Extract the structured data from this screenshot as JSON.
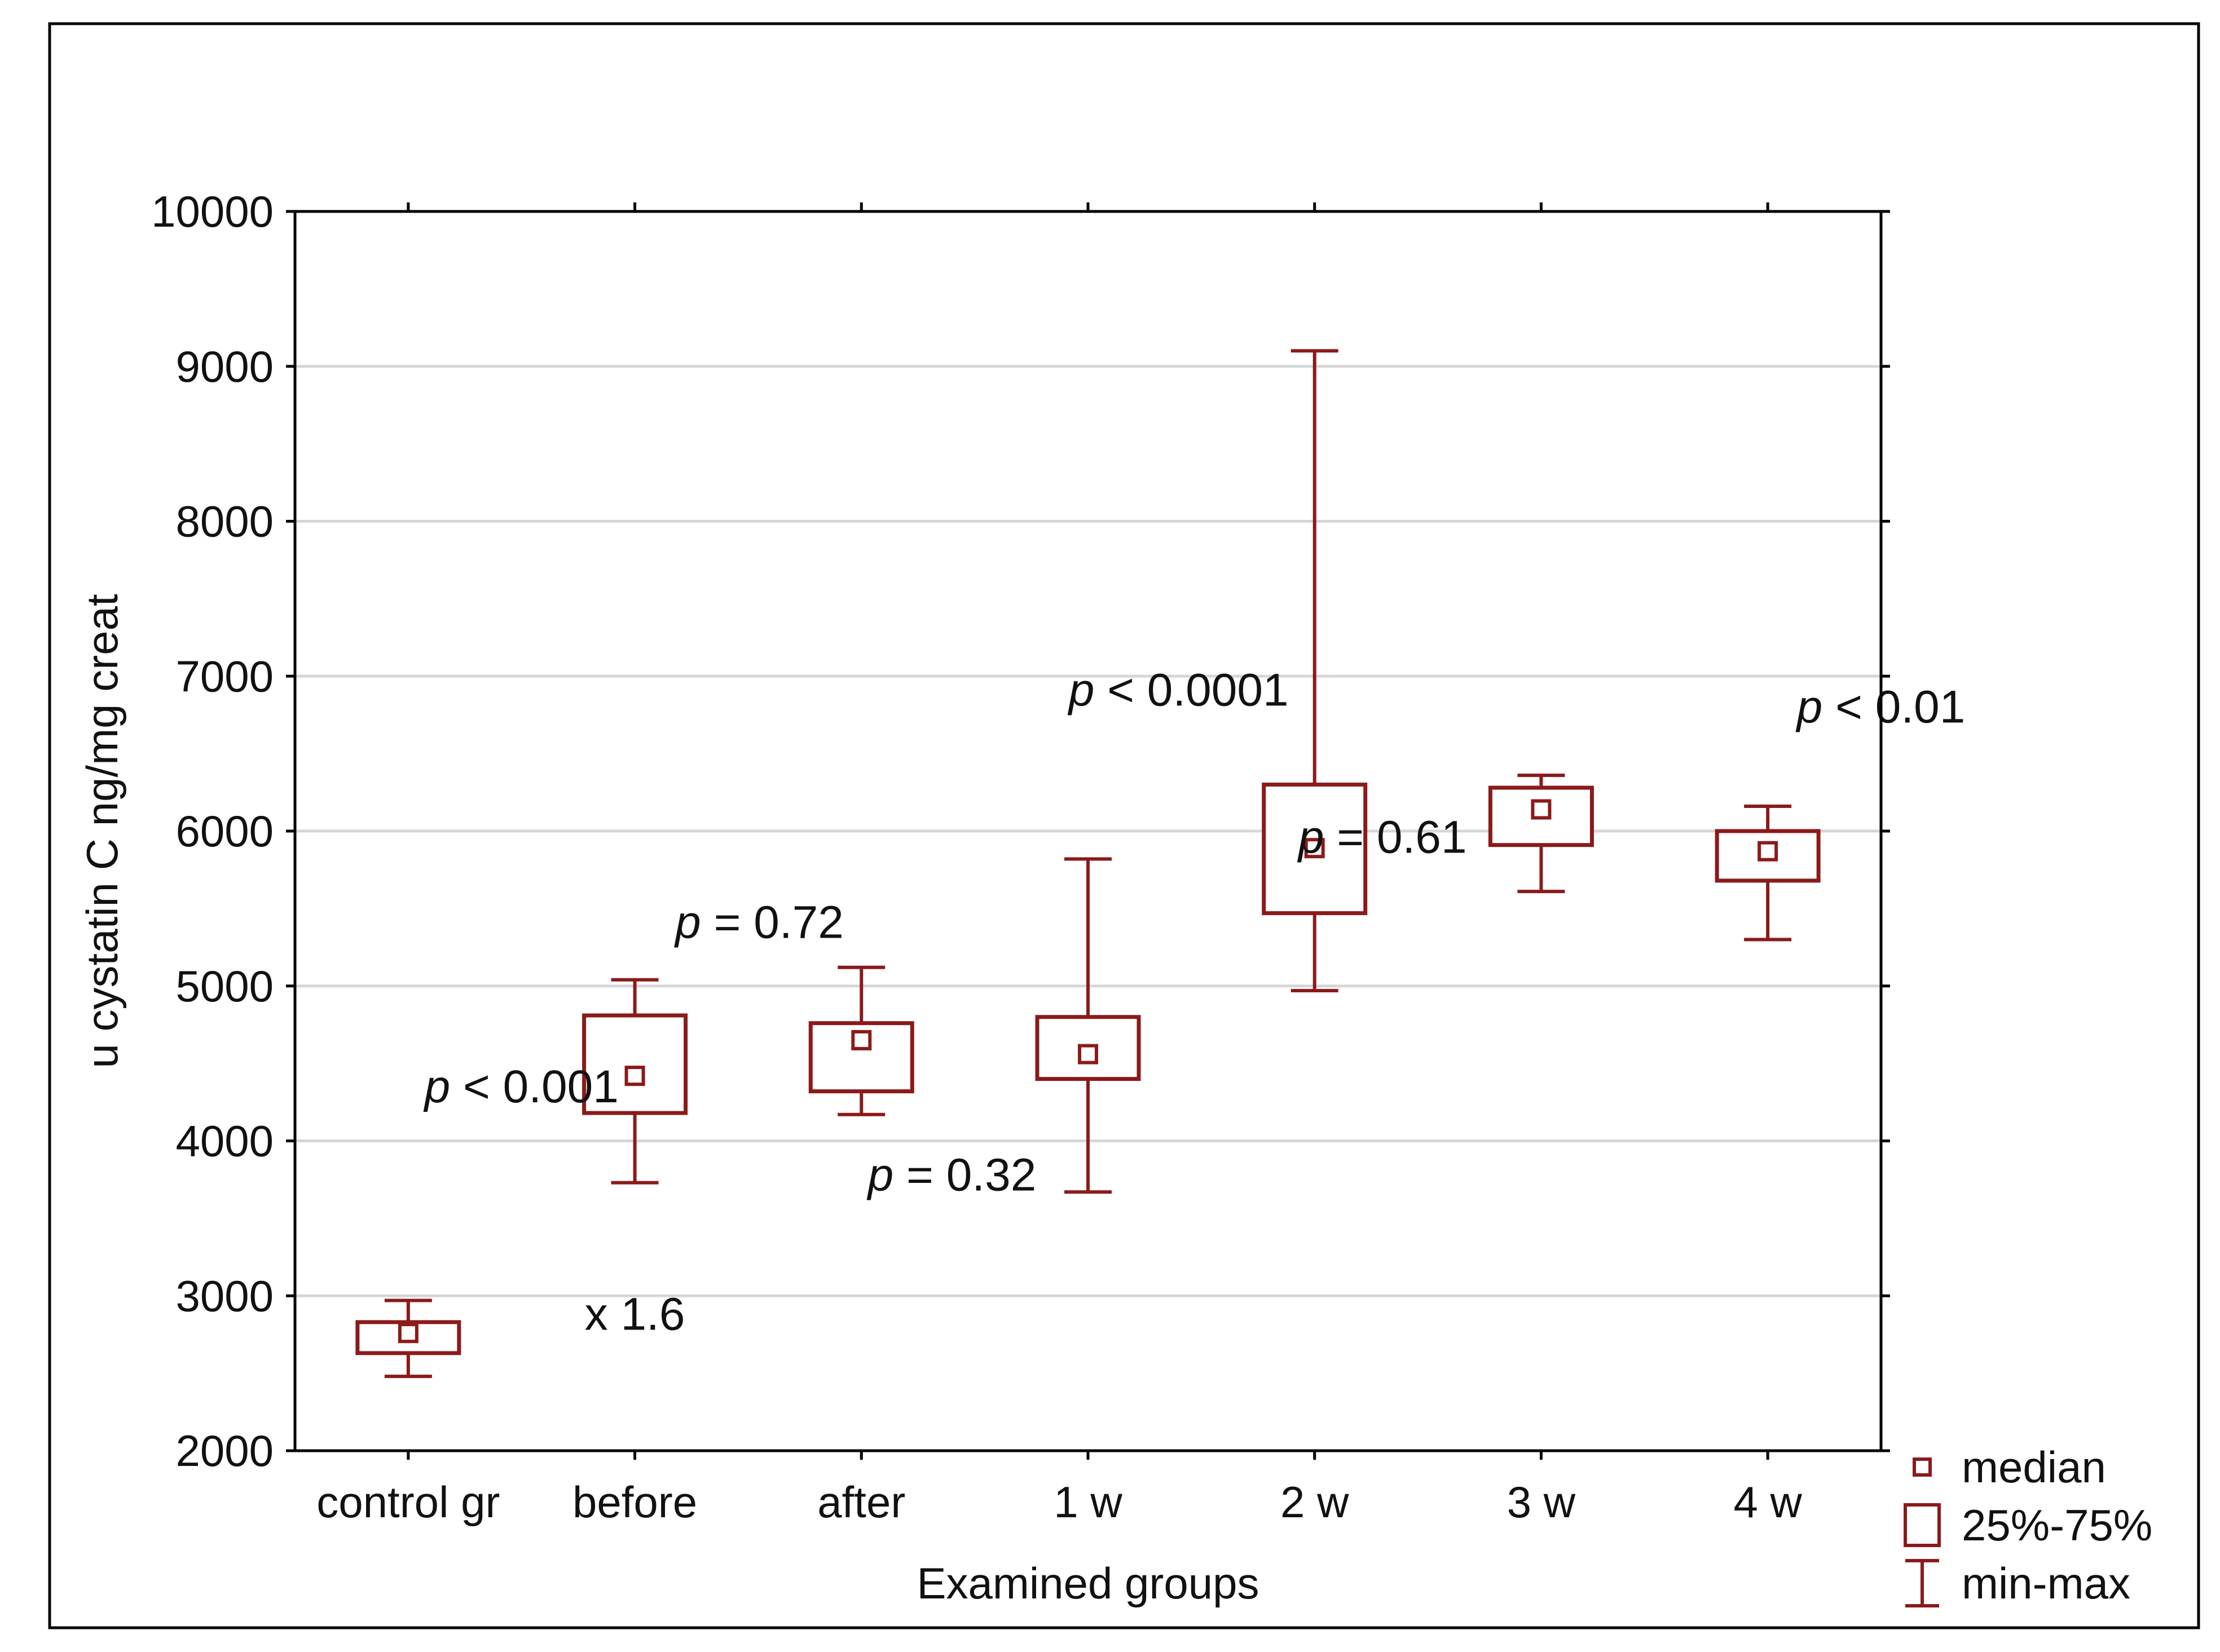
{
  "chart_data": {
    "type": "boxplot",
    "title": "",
    "xlabel": "Examined groups",
    "ylabel": "u cystatin C ng/mg creat",
    "ylim": [
      2000,
      10000
    ],
    "yticks": [
      2000,
      3000,
      4000,
      5000,
      6000,
      7000,
      8000,
      9000,
      10000
    ],
    "grid": true,
    "color": "#8B1A1A",
    "categories": [
      "control gr",
      "before",
      "after",
      "1 w",
      "2 w",
      "3 w",
      "4 w"
    ],
    "series": [
      {
        "name": "min",
        "values": [
          2480,
          3730,
          4170,
          3670,
          4970,
          5610,
          5300
        ]
      },
      {
        "name": "q1",
        "values": [
          2630,
          4180,
          4320,
          4400,
          5470,
          5910,
          5680
        ]
      },
      {
        "name": "median",
        "values": [
          2760,
          4420,
          4650,
          4560,
          5890,
          6140,
          5870
        ]
      },
      {
        "name": "q3",
        "values": [
          2830,
          4810,
          4760,
          4800,
          6300,
          6280,
          6000
        ]
      },
      {
        "name": "max",
        "values": [
          2970,
          5040,
          5120,
          5820,
          9100,
          6360,
          6160
        ]
      }
    ],
    "annotations": [
      {
        "italic": "p",
        "rest": " < 0.001",
        "x": 0.5,
        "y": 4250
      },
      {
        "italic": "",
        "rest": "x 1.6",
        "x": 1.0,
        "y": 2780
      },
      {
        "italic": "p",
        "rest": " = 0.72",
        "x": 1.55,
        "y": 5310
      },
      {
        "italic": "p",
        "rest": " = 0.32",
        "x": 2.4,
        "y": 3680
      },
      {
        "italic": "p",
        "rest": " < 0.0001",
        "x": 3.4,
        "y": 6810
      },
      {
        "italic": "p",
        "rest": " = 0.61",
        "x": 4.3,
        "y": 5860
      },
      {
        "italic": "p",
        "rest": " < 0.01",
        "x": 6.5,
        "y": 6700
      }
    ],
    "legend": {
      "position": "bottom-right",
      "items": [
        {
          "symbol": "median-marker",
          "label": "median"
        },
        {
          "symbol": "box",
          "label": "25%-75%"
        },
        {
          "symbol": "whisker",
          "label": "min-max"
        }
      ]
    }
  }
}
